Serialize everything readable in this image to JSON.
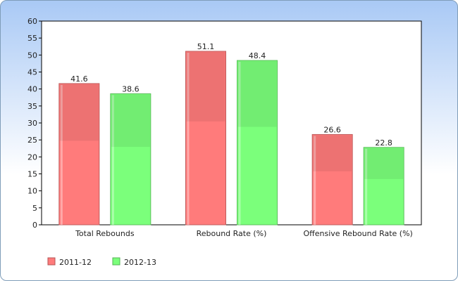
{
  "chart_data": {
    "type": "bar",
    "title": "",
    "xlabel": "",
    "ylabel": "",
    "categories": [
      "Total Rebounds",
      "Rebound Rate (%)",
      "Offensive Rebound Rate (%)"
    ],
    "series": [
      {
        "name": "2011-12",
        "values": [
          41.6,
          51.1,
          26.6
        ],
        "color": "#ff7b7b"
      },
      {
        "name": "2012-13",
        "values": [
          38.6,
          48.4,
          22.8
        ],
        "color": "#7bff7b"
      }
    ],
    "ylim": [
      0,
      60
    ],
    "yticks": [
      0,
      5,
      10,
      15,
      20,
      25,
      30,
      35,
      40,
      45,
      50,
      55,
      60
    ],
    "grid": false,
    "legend_position": "bottom-left",
    "data_labels": true,
    "background_gradient": [
      "#a9c9f5",
      "#ffffff"
    ]
  }
}
